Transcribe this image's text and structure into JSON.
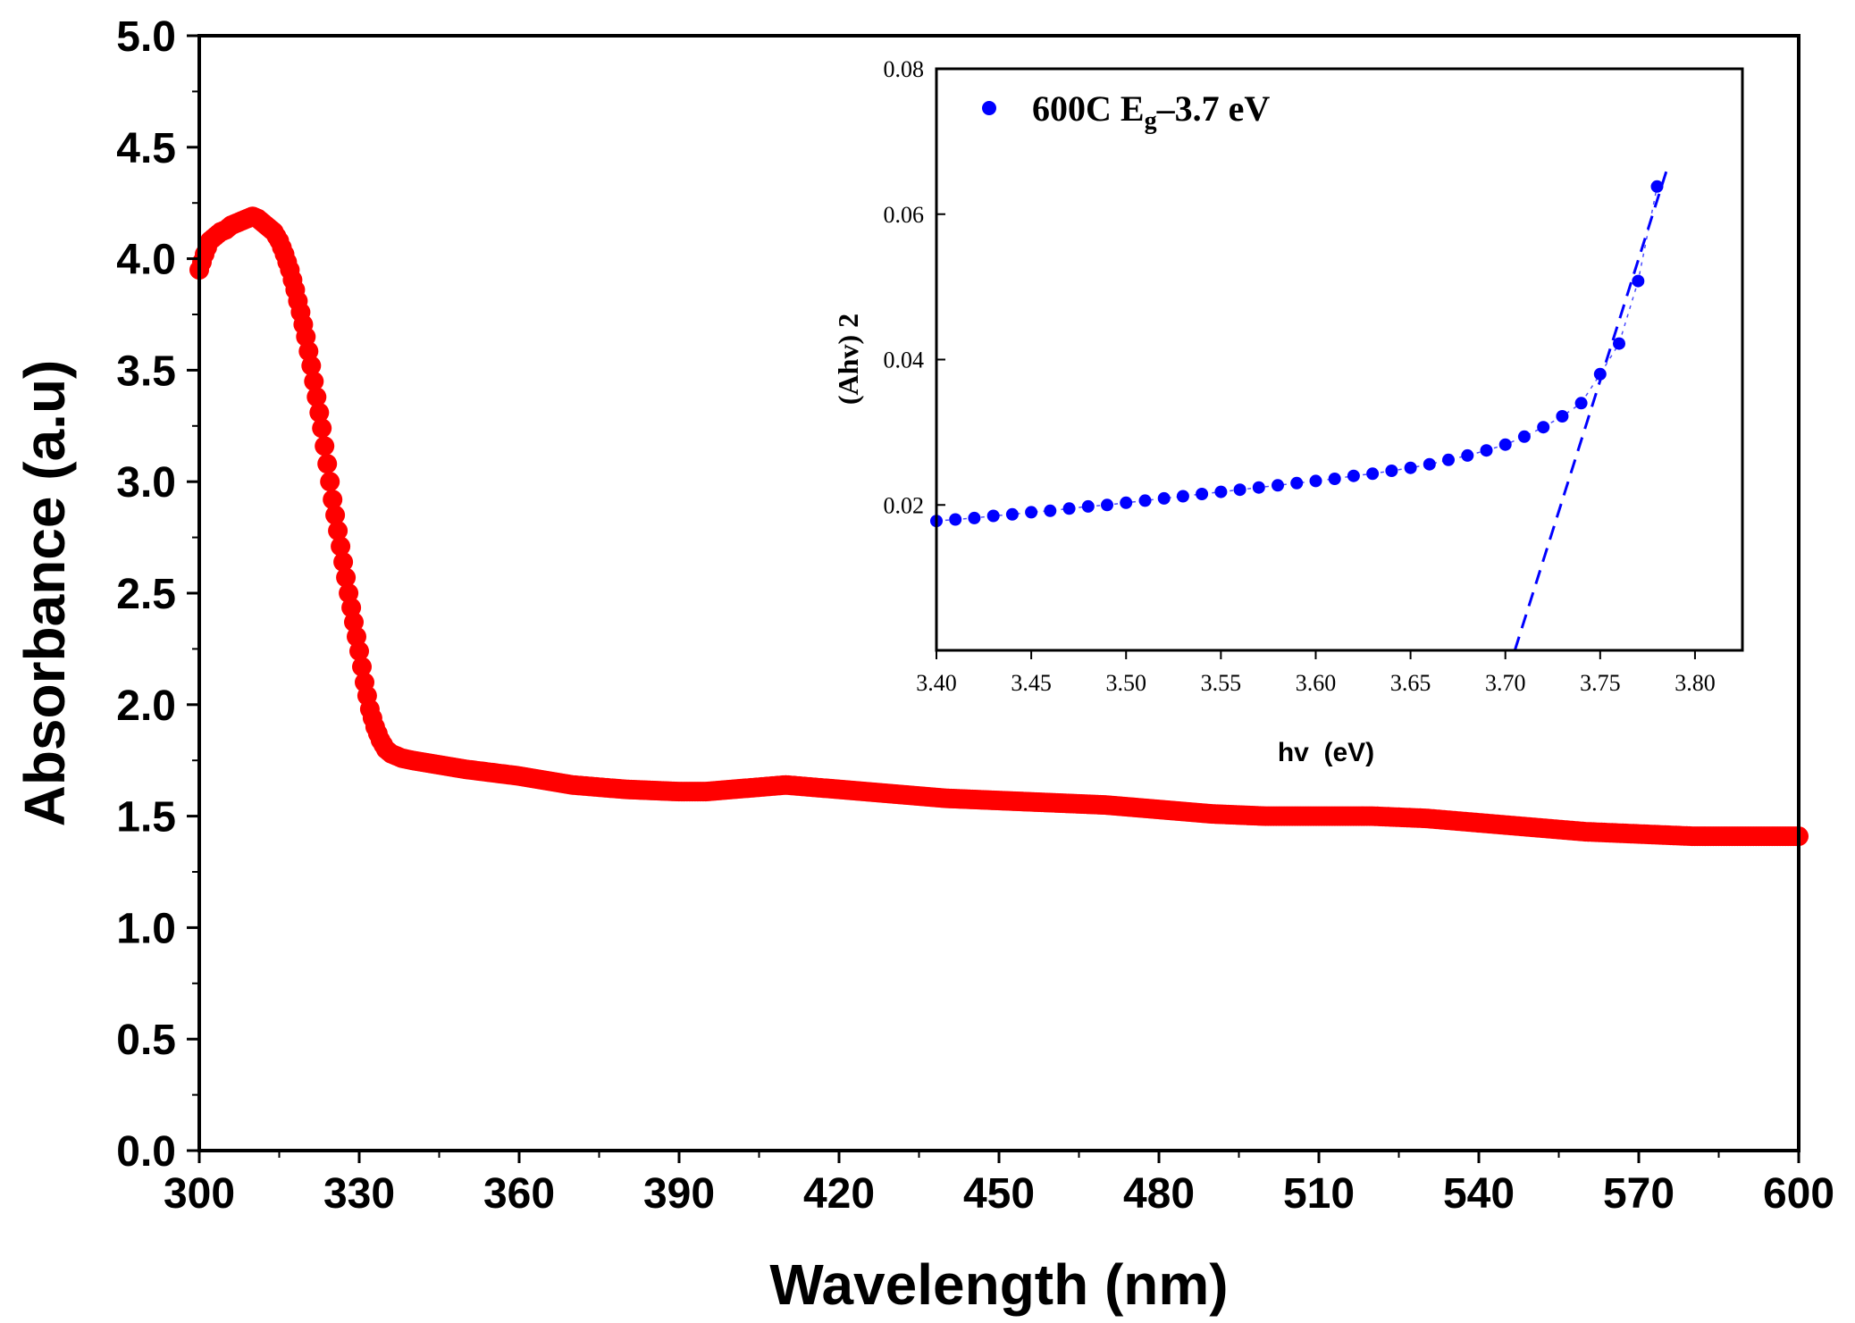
{
  "chart_data": [
    {
      "type": "scatter",
      "title": "",
      "xlabel": "Wavelength (nm)",
      "ylabel": "Absorbance (a.u)",
      "xlim": [
        300,
        600
      ],
      "ylim": [
        0.0,
        5.0
      ],
      "x_ticks": [
        "300",
        "330",
        "360",
        "390",
        "420",
        "450",
        "480",
        "510",
        "540",
        "570",
        "600"
      ],
      "y_ticks": [
        "0.0",
        "0.5",
        "1.0",
        "1.5",
        "2.0",
        "2.5",
        "3.0",
        "3.5",
        "4.0",
        "4.5",
        "5.0"
      ],
      "grid": false,
      "color": "#ff0000",
      "series": [
        {
          "name": "Absorbance",
          "x": [
            300,
            301,
            302,
            303,
            304,
            305,
            306,
            307,
            308,
            309,
            310,
            311,
            312,
            313,
            314,
            315,
            316,
            317,
            318,
            319,
            320,
            321,
            322,
            323,
            324,
            325,
            326,
            327,
            328,
            329,
            330,
            331,
            332,
            333,
            334,
            335,
            336,
            338,
            340,
            345,
            350,
            360,
            370,
            380,
            390,
            395,
            400,
            405,
            410,
            415,
            420,
            430,
            440,
            450,
            460,
            470,
            480,
            490,
            500,
            510,
            520,
            530,
            540,
            550,
            560,
            570,
            580,
            590,
            600
          ],
          "y": [
            3.95,
            4.02,
            4.08,
            4.1,
            4.12,
            4.13,
            4.15,
            4.16,
            4.17,
            4.18,
            4.19,
            4.18,
            4.16,
            4.14,
            4.12,
            4.08,
            4.02,
            3.95,
            3.86,
            3.76,
            3.65,
            3.52,
            3.38,
            3.24,
            3.08,
            2.92,
            2.78,
            2.64,
            2.5,
            2.37,
            2.24,
            2.1,
            1.98,
            1.9,
            1.84,
            1.8,
            1.78,
            1.76,
            1.75,
            1.73,
            1.71,
            1.68,
            1.64,
            1.62,
            1.61,
            1.61,
            1.62,
            1.63,
            1.64,
            1.63,
            1.62,
            1.6,
            1.58,
            1.57,
            1.56,
            1.55,
            1.53,
            1.51,
            1.5,
            1.5,
            1.5,
            1.49,
            1.47,
            1.45,
            1.43,
            1.42,
            1.41,
            1.41,
            1.41
          ]
        }
      ]
    },
    {
      "type": "scatter",
      "title": "",
      "xlabel": "hv  (eV)",
      "ylabel": "(Ahv) 2",
      "xlim": [
        3.4,
        3.825
      ],
      "ylim": [
        0.0,
        0.08
      ],
      "x_ticks": [
        "3.40",
        "3.45",
        "3.50",
        "3.55",
        "3.60",
        "3.65",
        "3.70",
        "3.75",
        "3.80"
      ],
      "y_ticks": [
        "0.02",
        "0.04",
        "0.06",
        "0.08"
      ],
      "grid": false,
      "color": "#0000ff",
      "legend": {
        "label_main": "600C E",
        "label_sub": "g",
        "label_rest": "–3.7 eV",
        "position": "top-left"
      },
      "series": [
        {
          "name": "600C Eg–3.7 eV",
          "x": [
            3.4,
            3.41,
            3.42,
            3.43,
            3.44,
            3.45,
            3.46,
            3.47,
            3.48,
            3.49,
            3.5,
            3.51,
            3.52,
            3.53,
            3.54,
            3.55,
            3.56,
            3.57,
            3.58,
            3.59,
            3.6,
            3.61,
            3.62,
            3.63,
            3.64,
            3.65,
            3.66,
            3.67,
            3.68,
            3.69,
            3.7,
            3.71,
            3.72,
            3.73,
            3.74,
            3.75,
            3.76,
            3.77,
            3.78
          ],
          "y": [
            0.0178,
            0.018,
            0.0182,
            0.0185,
            0.0187,
            0.019,
            0.0192,
            0.0195,
            0.0198,
            0.02,
            0.0203,
            0.0206,
            0.0209,
            0.0212,
            0.0215,
            0.0218,
            0.0221,
            0.0224,
            0.0227,
            0.023,
            0.0233,
            0.0236,
            0.024,
            0.0243,
            0.0247,
            0.0251,
            0.0256,
            0.0262,
            0.0268,
            0.0275,
            0.0283,
            0.0294,
            0.0307,
            0.0322,
            0.034,
            0.038,
            0.0422,
            0.0508,
            0.0638
          ]
        }
      ],
      "fit_line": {
        "x": [
          3.705,
          3.785
        ],
        "y": [
          0.0,
          0.066
        ],
        "style": "dashed"
      }
    }
  ]
}
